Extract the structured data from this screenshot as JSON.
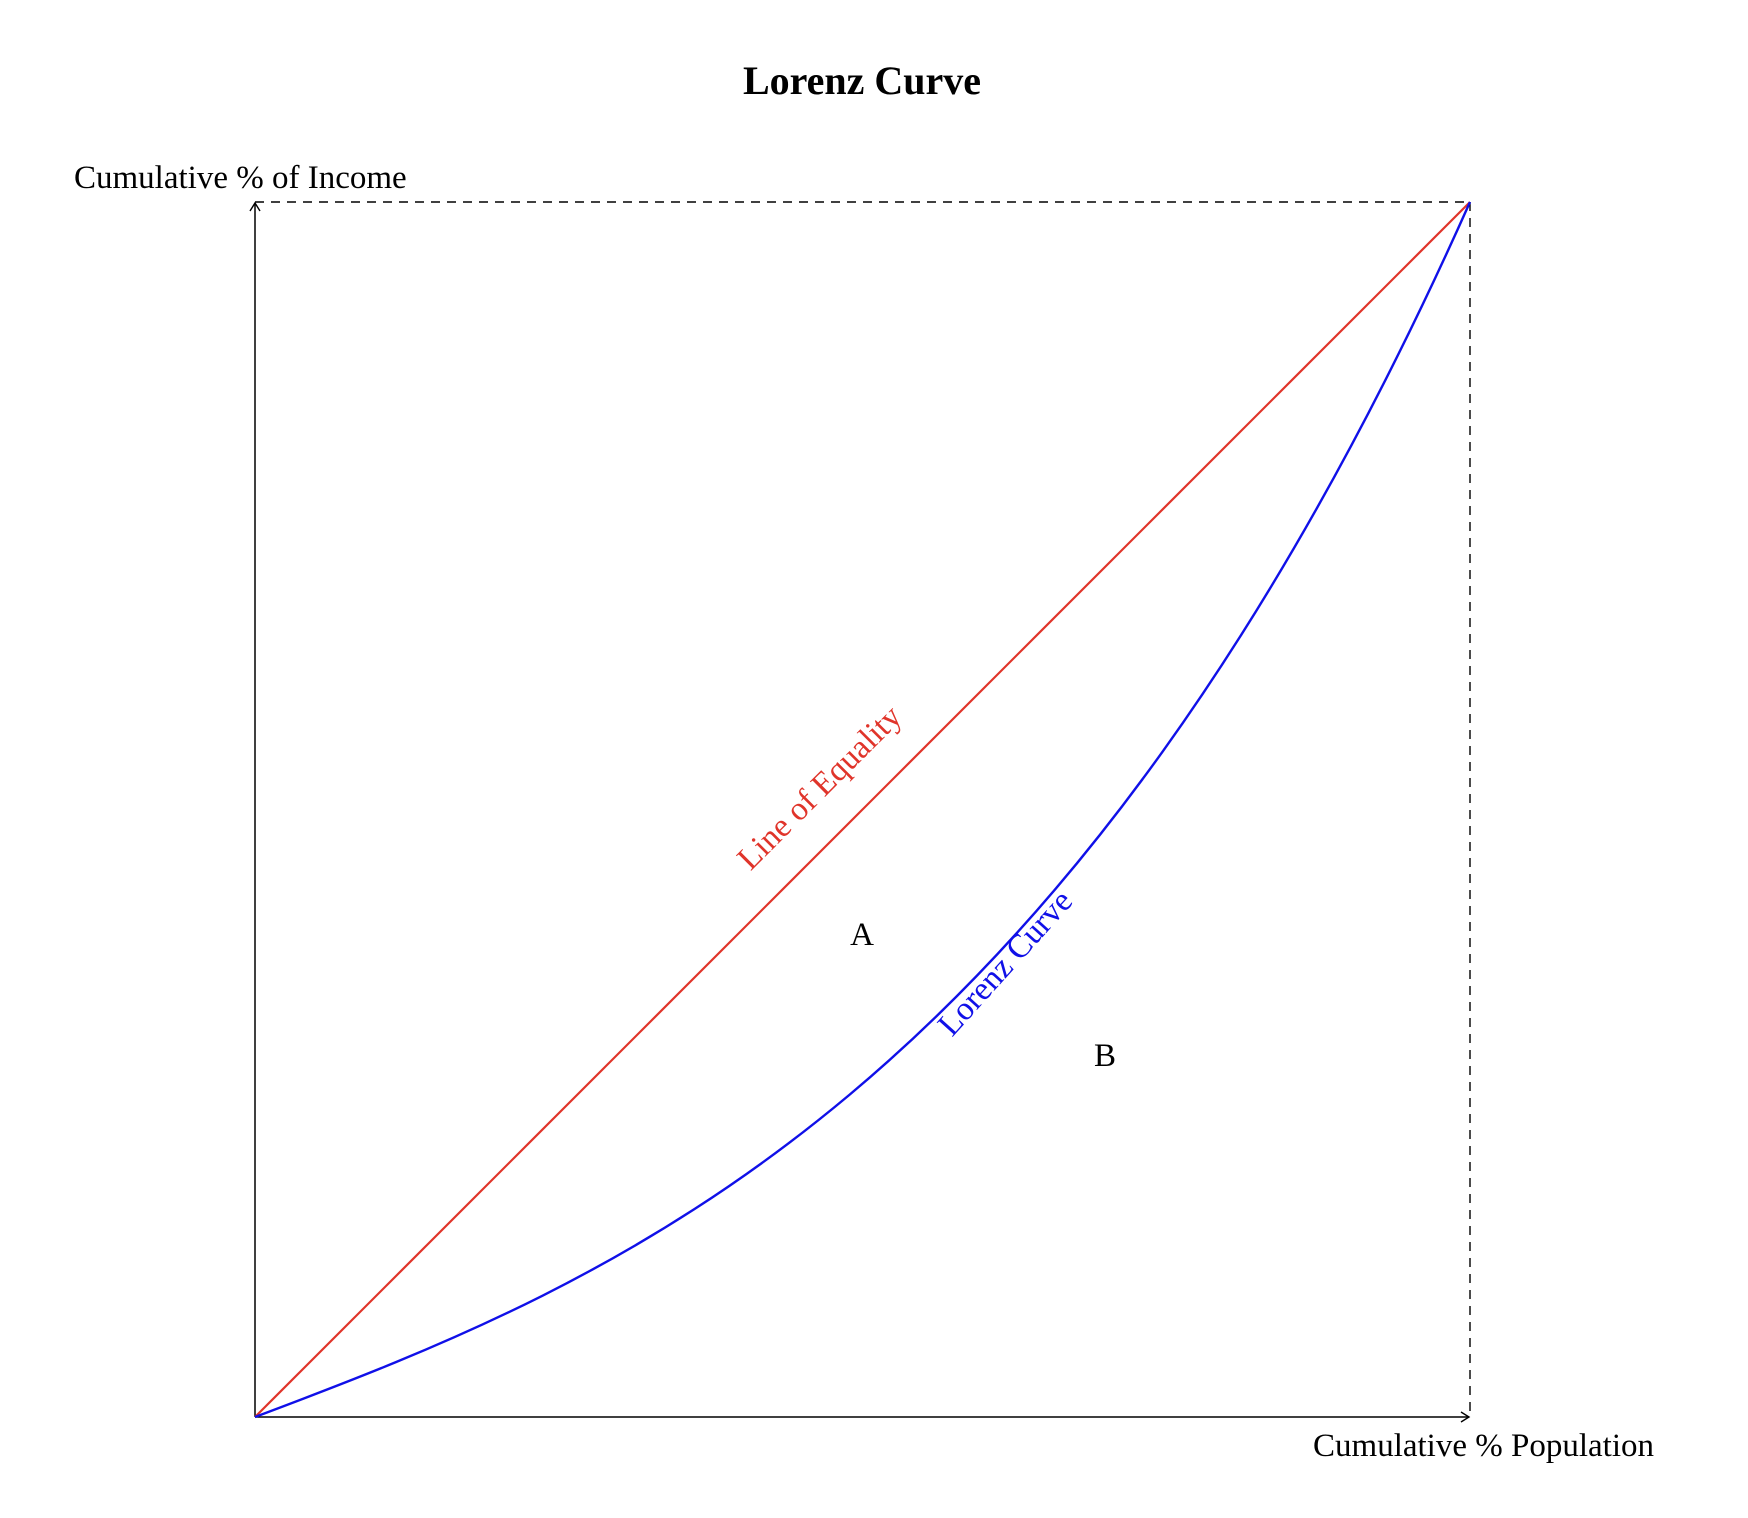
{
  "title": "Lorenz Curve",
  "axes": {
    "y_label": "Cumulative % of Income",
    "x_label": "Cumulative % Population"
  },
  "lines": {
    "equality": {
      "label": "Line of Equality",
      "color": "#e0342a"
    },
    "lorenz": {
      "label": "Lorenz Curve",
      "color": "#1010e8"
    }
  },
  "regions": {
    "a": "A",
    "b": "B"
  },
  "colors": {
    "axis": "#000000",
    "boundary_dashed": "#000000"
  }
}
